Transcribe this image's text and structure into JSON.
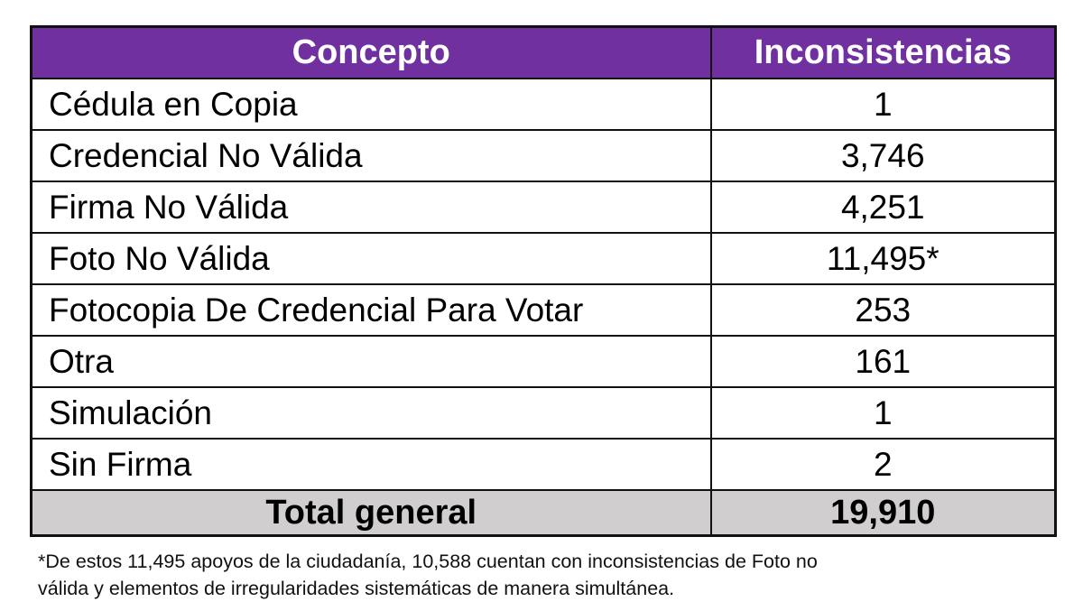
{
  "table": {
    "headers": [
      "Concepto",
      "Inconsistencias"
    ],
    "rows": [
      {
        "concepto": "Cédula en Copia",
        "inconsistencias": "1"
      },
      {
        "concepto": "Credencial No Válida",
        "inconsistencias": "3,746"
      },
      {
        "concepto": "Firma No Válida",
        "inconsistencias": "4,251"
      },
      {
        "concepto": "Foto No Válida",
        "inconsistencias": "11,495*"
      },
      {
        "concepto": "Fotocopia De Credencial Para Votar",
        "inconsistencias": "253"
      },
      {
        "concepto": "Otra",
        "inconsistencias": "161"
      },
      {
        "concepto": "Simulación",
        "inconsistencias": "1"
      },
      {
        "concepto": "Sin Firma",
        "inconsistencias": "2"
      }
    ],
    "total": {
      "label": "Total general",
      "value": "19,910"
    }
  },
  "footnote": {
    "line1": "*De estos 11,495 apoyos de la ciudadanía, 10,588 cuentan con inconsistencias de Foto no",
    "line2": "válida y elementos de irregularidades sistemáticas de manera simultánea."
  },
  "colors": {
    "header_bg": "#7030a0",
    "header_text": "#ffffff",
    "total_bg": "#d0cece",
    "border": "#111111"
  }
}
